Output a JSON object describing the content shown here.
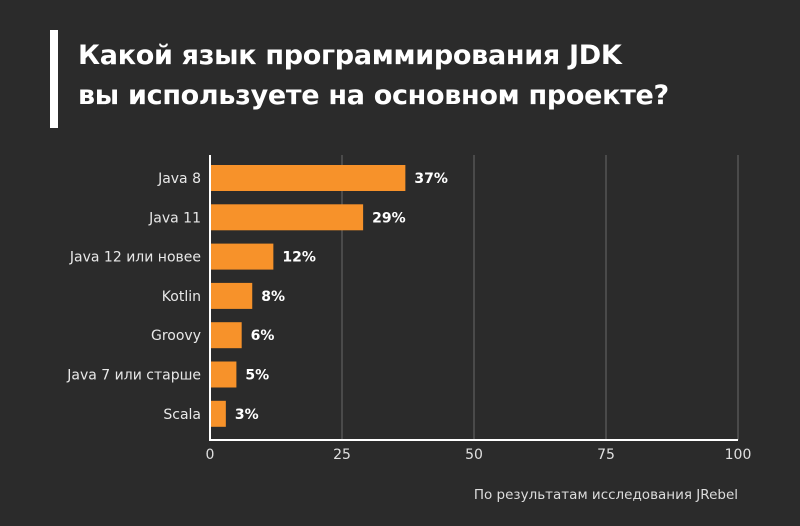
{
  "title_lines": [
    "Какой язык программирования JDK",
    "вы используете на основном проекте?"
  ],
  "footer": "По результатам исследования JRebel",
  "colors": {
    "background": "#2b2b2b",
    "bar": "#f7922a",
    "text": "#ffffff",
    "grid": "#6a6a6a"
  },
  "chart_data": {
    "type": "bar",
    "orientation": "horizontal",
    "title": "Какой язык программирования JDK вы используете на основном проекте?",
    "categories": [
      "Java 8",
      "Java 11",
      "Java 12 или новее",
      "Kotlin",
      "Groovy",
      "Java 7 или старше",
      "Scala"
    ],
    "values": [
      37,
      29,
      12,
      8,
      6,
      5,
      3
    ],
    "value_labels": [
      "37%",
      "29%",
      "12%",
      "8%",
      "6%",
      "5%",
      "3%"
    ],
    "xlim": [
      0,
      100
    ],
    "xticks": [
      0,
      25,
      50,
      75,
      100
    ],
    "xtick_labels": [
      "0",
      "25",
      "50",
      "75",
      "100"
    ],
    "grid": "vertical",
    "xlabel": "",
    "ylabel": ""
  }
}
